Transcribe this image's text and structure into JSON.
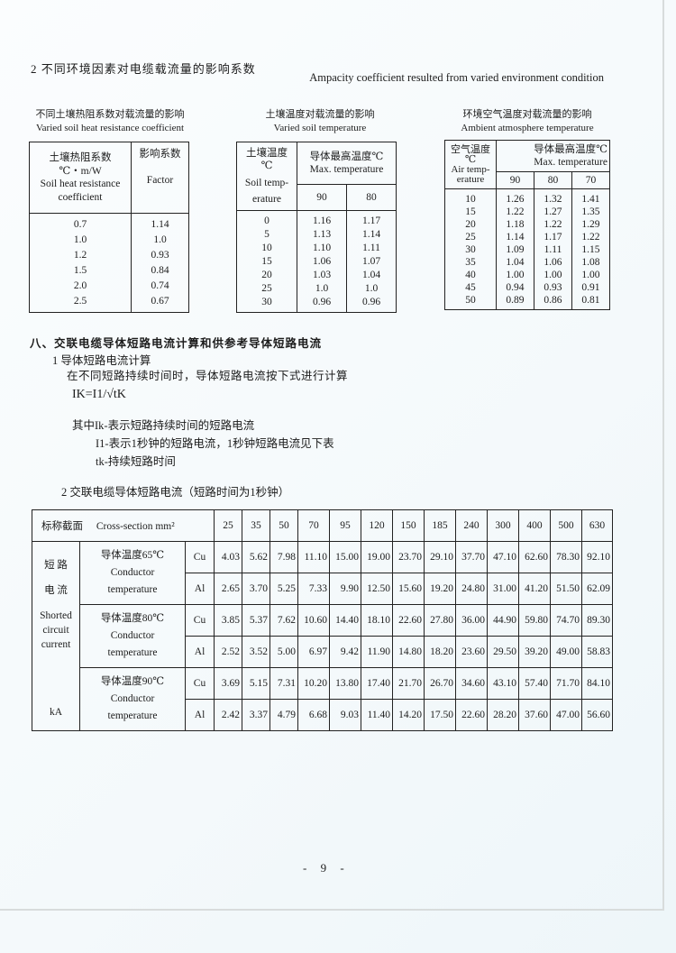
{
  "section2_title": "2  不同环境因素对电缆载流量的影响系数",
  "section2_title_en": "Ampacity coefficient resulted from varied environment condition",
  "soil_resistance": {
    "caption_cn": "不同土壤热阻系数对载流量的影响",
    "caption_en": "Varied soil heat resistance coefficient",
    "col1": [
      "土壤热阻系数",
      "℃・m/W",
      "Soil heat resistance",
      "coefficient"
    ],
    "col2": [
      "影响系数",
      "Factor"
    ],
    "rows": [
      [
        "0.7",
        "1.14"
      ],
      [
        "1.0",
        "1.0"
      ],
      [
        "1.2",
        "0.93"
      ],
      [
        "1.5",
        "0.84"
      ],
      [
        "2.0",
        "0.74"
      ],
      [
        "2.5",
        "0.67"
      ]
    ]
  },
  "soil_temperature": {
    "caption_cn": "土壤温度对载流量的影响",
    "caption_en": "Varied soil temperature",
    "col1": [
      "土壤温度",
      "℃",
      "Soil temp-",
      "erature"
    ],
    "group": [
      "导体最高温度℃",
      "Max. temperature"
    ],
    "subcols": [
      "90",
      "80"
    ],
    "rows": [
      [
        "0",
        "1.16",
        "1.17"
      ],
      [
        "5",
        "1.13",
        "1.14"
      ],
      [
        "10",
        "1.10",
        "1.11"
      ],
      [
        "15",
        "1.06",
        "1.07"
      ],
      [
        "20",
        "1.03",
        "1.04"
      ],
      [
        "25",
        "1.0",
        "1.0"
      ],
      [
        "30",
        "0.96",
        "0.96"
      ]
    ]
  },
  "air_temperature": {
    "caption_cn": "环境空气温度对载流量的影响",
    "caption_en": "Ambient atmosphere temperature",
    "col1": [
      "空气温度",
      "℃",
      "Air temp-",
      "erature"
    ],
    "group": [
      "导体最高温度℃",
      "Max. temperature"
    ],
    "subcols": [
      "90",
      "80",
      "70"
    ],
    "rows": [
      [
        "10",
        "1.26",
        "1.32",
        "1.41"
      ],
      [
        "15",
        "1.22",
        "1.27",
        "1.35"
      ],
      [
        "20",
        "1.18",
        "1.22",
        "1.29"
      ],
      [
        "25",
        "1.14",
        "1.17",
        "1.22"
      ],
      [
        "30",
        "1.09",
        "1.11",
        "1.15"
      ],
      [
        "35",
        "1.04",
        "1.06",
        "1.08"
      ],
      [
        "40",
        "1.00",
        "1.00",
        "1.00"
      ],
      [
        "45",
        "0.94",
        "0.93",
        "0.91"
      ],
      [
        "50",
        "0.89",
        "0.86",
        "0.81"
      ]
    ]
  },
  "section8": {
    "title": "八、交联电缆导体短路电流计算和供参考导体短路电流",
    "sub1": "1  导体短路电流计算",
    "line1": "在不同短路持续时间时，导体短路电流按下式进行计算",
    "formula": "IK=I1/√tK",
    "where": "其中Ik-表示短路持续时间的短路电流",
    "i1": "I1-表示1秒钟的短路电流，1秒钟短路电流见下表",
    "tk": "tk-持续短路时间",
    "sub2": "2  交联电缆导体短路电流（短路时间为1秒钟）"
  },
  "short_circuit": {
    "header_cn": "标称截面",
    "header_en": "Cross-section mm²",
    "sections": [
      "25",
      "35",
      "50",
      "70",
      "95",
      "120",
      "150",
      "185",
      "240",
      "300",
      "400",
      "500",
      "630"
    ],
    "side_label": [
      "短 路",
      "电 流",
      "Shorted",
      "circuit",
      "current",
      "kA"
    ],
    "groups": [
      {
        "label_cn": "导体温度65℃",
        "label_en": [
          "Conductor",
          "temperature"
        ],
        "rows": [
          {
            "metal": "Cu",
            "values": [
              "4.03",
              "5.62",
              "7.98",
              "11.10",
              "15.00",
              "19.00",
              "23.70",
              "29.10",
              "37.70",
              "47.10",
              "62.60",
              "78.30",
              "92.10"
            ]
          },
          {
            "metal": "Al",
            "values": [
              "2.65",
              "3.70",
              "5.25",
              "7.33",
              "9.90",
              "12.50",
              "15.60",
              "19.20",
              "24.80",
              "31.00",
              "41.20",
              "51.50",
              "62.09"
            ]
          }
        ]
      },
      {
        "label_cn": "导体温度80℃",
        "label_en": [
          "Conductor",
          "temperature"
        ],
        "rows": [
          {
            "metal": "Cu",
            "values": [
              "3.85",
              "5.37",
              "7.62",
              "10.60",
              "14.40",
              "18.10",
              "22.60",
              "27.80",
              "36.00",
              "44.90",
              "59.80",
              "74.70",
              "89.30"
            ]
          },
          {
            "metal": "Al",
            "values": [
              "2.52",
              "3.52",
              "5.00",
              "6.97",
              "9.42",
              "11.90",
              "14.80",
              "18.20",
              "23.60",
              "29.50",
              "39.20",
              "49.00",
              "58.83"
            ]
          }
        ]
      },
      {
        "label_cn": "导体温度90℃",
        "label_en": [
          "Conductor",
          "temperature"
        ],
        "rows": [
          {
            "metal": "Cu",
            "values": [
              "3.69",
              "5.15",
              "7.31",
              "10.20",
              "13.80",
              "17.40",
              "21.70",
              "26.70",
              "34.60",
              "43.10",
              "57.40",
              "71.70",
              "84.10"
            ]
          },
          {
            "metal": "Al",
            "values": [
              "2.42",
              "3.37",
              "4.79",
              "6.68",
              "9.03",
              "11.40",
              "14.20",
              "17.50",
              "22.60",
              "28.20",
              "37.60",
              "47.00",
              "56.60"
            ]
          }
        ]
      }
    ]
  },
  "page_number": "- 9 -"
}
